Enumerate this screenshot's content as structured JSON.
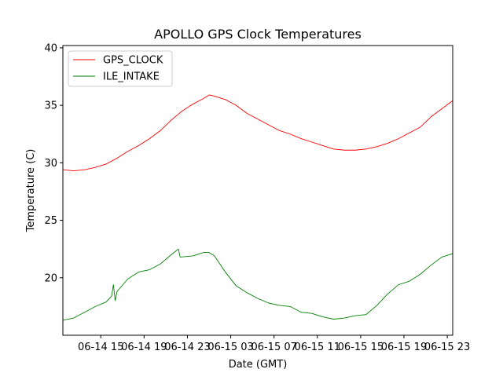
{
  "chart_data": {
    "type": "line",
    "title": "APOLLO GPS Clock Temperatures",
    "xlabel": "Date (GMT)",
    "ylabel": "Temperature (C)",
    "xlim": [
      "06-14 11:30",
      "06-15 23:30"
    ],
    "ylim": [
      15.0,
      40.2
    ],
    "grid": false,
    "legend_position": "top-left",
    "x_ticks": [
      {
        "value": "06-14 15:00",
        "label": "06-14 15"
      },
      {
        "value": "06-14 19:00",
        "label": "06-14 19"
      },
      {
        "value": "06-14 23:00",
        "label": "06-14 23"
      },
      {
        "value": "06-15 03:00",
        "label": "06-15 03"
      },
      {
        "value": "06-15 07:00",
        "label": "06-15 07"
      },
      {
        "value": "06-15 11:00",
        "label": "06-15 11"
      },
      {
        "value": "06-15 15:00",
        "label": "06-15 15"
      },
      {
        "value": "06-15 19:00",
        "label": "06-15 19"
      },
      {
        "value": "06-15 23:00",
        "label": "06-15 23"
      }
    ],
    "y_ticks": [
      {
        "value": 20,
        "label": "20"
      },
      {
        "value": 25,
        "label": "25"
      },
      {
        "value": 30,
        "label": "30"
      },
      {
        "value": 35,
        "label": "35"
      },
      {
        "value": 40,
        "label": "40"
      }
    ],
    "series": [
      {
        "name": "GPS_CLOCK",
        "color": "#ff0000",
        "points": [
          [
            "06-14 11:30",
            29.4
          ],
          [
            "06-14 12:30",
            29.3
          ],
          [
            "06-14 13:30",
            29.4
          ],
          [
            "06-14 14:30",
            29.6
          ],
          [
            "06-14 15:30",
            29.9
          ],
          [
            "06-14 16:30",
            30.4
          ],
          [
            "06-14 17:30",
            31.0
          ],
          [
            "06-14 18:30",
            31.5
          ],
          [
            "06-14 19:30",
            32.1
          ],
          [
            "06-14 20:30",
            32.8
          ],
          [
            "06-14 21:30",
            33.7
          ],
          [
            "06-14 22:30",
            34.5
          ],
          [
            "06-14 23:30",
            35.1
          ],
          [
            "06-15 00:30",
            35.6
          ],
          [
            "06-15 01:00",
            35.9
          ],
          [
            "06-15 01:30",
            35.8
          ],
          [
            "06-15 02:30",
            35.5
          ],
          [
            "06-15 03:30",
            35.0
          ],
          [
            "06-15 04:30",
            34.3
          ],
          [
            "06-15 05:30",
            33.8
          ],
          [
            "06-15 06:30",
            33.3
          ],
          [
            "06-15 07:30",
            32.8
          ],
          [
            "06-15 08:30",
            32.5
          ],
          [
            "06-15 09:30",
            32.1
          ],
          [
            "06-15 10:30",
            31.8
          ],
          [
            "06-15 11:30",
            31.5
          ],
          [
            "06-15 12:30",
            31.2
          ],
          [
            "06-15 13:30",
            31.1
          ],
          [
            "06-15 14:30",
            31.1
          ],
          [
            "06-15 15:30",
            31.2
          ],
          [
            "06-15 16:30",
            31.4
          ],
          [
            "06-15 17:30",
            31.7
          ],
          [
            "06-15 18:30",
            32.1
          ],
          [
            "06-15 19:30",
            32.6
          ],
          [
            "06-15 20:30",
            33.1
          ],
          [
            "06-15 21:30",
            34.0
          ],
          [
            "06-15 22:30",
            34.7
          ],
          [
            "06-15 23:30",
            35.4
          ]
        ]
      },
      {
        "name": "ILE_INTAKE",
        "color": "#008000",
        "points": [
          [
            "06-14 11:30",
            16.3
          ],
          [
            "06-14 12:30",
            16.5
          ],
          [
            "06-14 13:30",
            17.0
          ],
          [
            "06-14 14:30",
            17.5
          ],
          [
            "06-14 15:30",
            17.9
          ],
          [
            "06-14 16:00",
            18.4
          ],
          [
            "06-14 16:10",
            19.4
          ],
          [
            "06-14 16:20",
            18.0
          ],
          [
            "06-14 16:30",
            18.8
          ],
          [
            "06-14 17:30",
            19.9
          ],
          [
            "06-14 18:30",
            20.5
          ],
          [
            "06-14 19:30",
            20.7
          ],
          [
            "06-14 20:30",
            21.2
          ],
          [
            "06-14 21:30",
            22.0
          ],
          [
            "06-14 22:10",
            22.5
          ],
          [
            "06-14 22:20",
            21.8
          ],
          [
            "06-14 23:30",
            21.9
          ],
          [
            "06-15 00:30",
            22.2
          ],
          [
            "06-15 01:00",
            22.2
          ],
          [
            "06-15 01:30",
            21.9
          ],
          [
            "06-15 02:30",
            20.5
          ],
          [
            "06-15 03:30",
            19.3
          ],
          [
            "06-15 04:30",
            18.7
          ],
          [
            "06-15 05:30",
            18.2
          ],
          [
            "06-15 06:30",
            17.8
          ],
          [
            "06-15 07:30",
            17.6
          ],
          [
            "06-15 08:30",
            17.5
          ],
          [
            "06-15 09:30",
            17.0
          ],
          [
            "06-15 10:30",
            16.9
          ],
          [
            "06-15 11:30",
            16.6
          ],
          [
            "06-15 12:30",
            16.4
          ],
          [
            "06-15 13:30",
            16.5
          ],
          [
            "06-15 14:30",
            16.7
          ],
          [
            "06-15 15:30",
            16.8
          ],
          [
            "06-15 16:30",
            17.6
          ],
          [
            "06-15 17:30",
            18.6
          ],
          [
            "06-15 18:30",
            19.4
          ],
          [
            "06-15 19:30",
            19.7
          ],
          [
            "06-15 20:30",
            20.3
          ],
          [
            "06-15 21:30",
            21.1
          ],
          [
            "06-15 22:30",
            21.8
          ],
          [
            "06-15 23:30",
            22.1
          ]
        ]
      }
    ]
  }
}
